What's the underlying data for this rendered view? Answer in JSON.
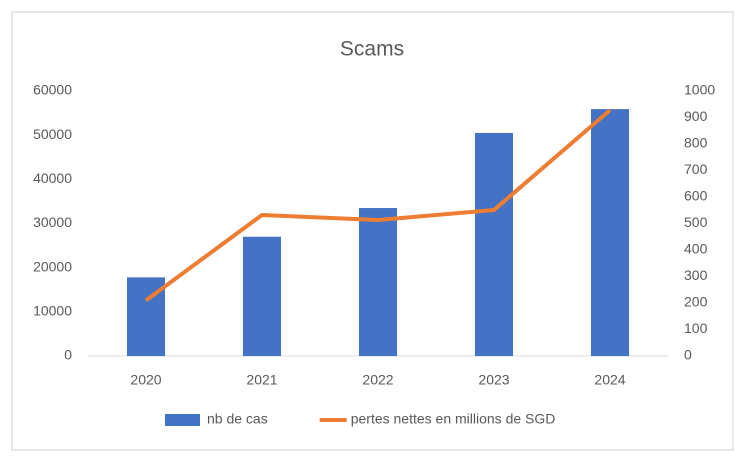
{
  "chart_data": {
    "type": "combo",
    "title": "Scams",
    "categories": [
      "2020",
      "2021",
      "2022",
      "2023",
      "2024"
    ],
    "series": [
      {
        "name": "nb de cas",
        "type": "bar",
        "color": "#4472c4",
        "values": [
          17800,
          27000,
          33500,
          50500,
          55900
        ]
      },
      {
        "name": "pertes nettes en millions de SGD",
        "type": "line",
        "axis": "y2",
        "color": "#ed7d31",
        "values": [
          210,
          532,
          513,
          551,
          928
        ]
      }
    ],
    "ylim": [
      0,
      60000
    ],
    "yticks": [
      0,
      10000,
      20000,
      30000,
      40000,
      50000,
      60000
    ],
    "y2lim": [
      0,
      1000
    ],
    "y2ticks": [
      0,
      100,
      200,
      300,
      400,
      500,
      600,
      700,
      800,
      900,
      1000
    ],
    "grid": false,
    "legend": "bottom"
  }
}
